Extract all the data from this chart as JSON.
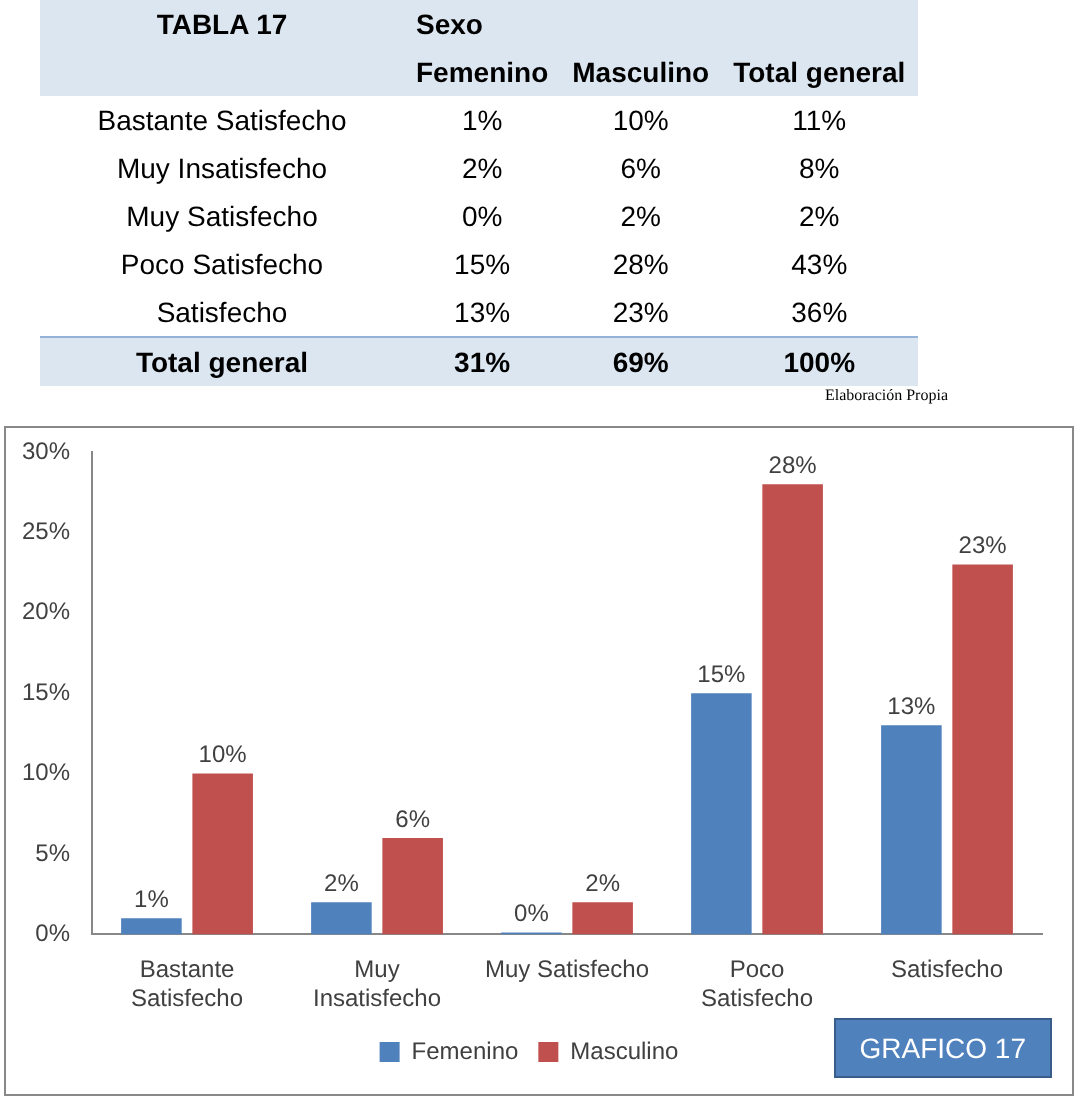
{
  "chart_data": [
    {
      "type": "other",
      "title": "TABLA 17",
      "legend_title": "Sexo",
      "categories": [
        "Bastante Satisfecho",
        "Muy Insatisfecho",
        "Muy Satisfecho",
        "Poco Satisfecho",
        "Satisfecho",
        "Total general"
      ],
      "series": [
        {
          "name": "Femenino",
          "values": [
            1,
            2,
            0,
            15,
            13,
            31
          ],
          "value_labels": [
            "1%",
            "2%",
            "0%",
            "15%",
            "13%",
            "31%"
          ]
        },
        {
          "name": "Masculino",
          "values": [
            10,
            6,
            2,
            28,
            23,
            69
          ],
          "value_labels": [
            "10%",
            "6%",
            "2%",
            "28%",
            "23%",
            "69%"
          ]
        },
        {
          "name": "Total general",
          "values": [
            11,
            8,
            2,
            43,
            36,
            100
          ],
          "value_labels": [
            "11%",
            "8%",
            "2%",
            "43%",
            "36%",
            "100%"
          ]
        }
      ],
      "annotations": [
        "Elaboración Propia"
      ]
    },
    {
      "type": "bar",
      "categories": [
        "Bastante Satisfecho",
        "Muy Insatisfecho",
        "Muy Satisfecho",
        "Poco Satisfecho",
        "Satisfecho"
      ],
      "series": [
        {
          "name": "Femenino",
          "color": "#4f81bd",
          "values": [
            1,
            2,
            0,
            15,
            13
          ],
          "value_labels": [
            "1%",
            "2%",
            "0%",
            "15%",
            "13%"
          ]
        },
        {
          "name": "Masculino",
          "color": "#c0504d",
          "values": [
            10,
            6,
            2,
            28,
            23
          ],
          "value_labels": [
            "10%",
            "6%",
            "2%",
            "28%",
            "23%"
          ]
        }
      ],
      "ylim": [
        0,
        30
      ],
      "yticks": [
        {
          "value": 0,
          "label": "0%"
        },
        {
          "value": 5,
          "label": "5%"
        },
        {
          "value": 10,
          "label": "10%"
        },
        {
          "value": 15,
          "label": "15%"
        },
        {
          "value": 20,
          "label": "20%"
        },
        {
          "value": 25,
          "label": "25%"
        },
        {
          "value": 30,
          "label": "30%"
        }
      ],
      "grid": false,
      "legend": "bottom",
      "annotations": [
        "GRAFICO 17"
      ]
    }
  ]
}
